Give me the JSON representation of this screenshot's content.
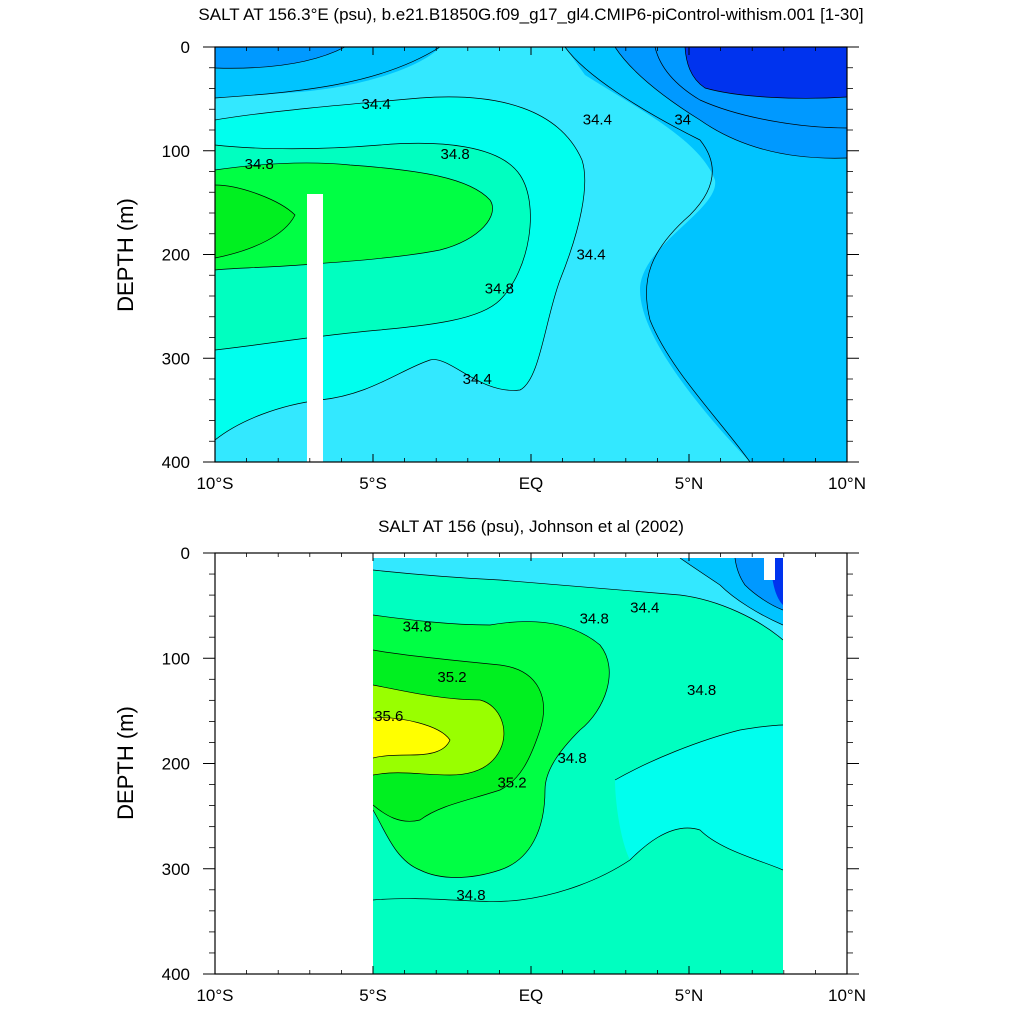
{
  "chart_data": [
    {
      "type": "heatmap",
      "subtype": "filled-contour",
      "title": "SALT AT 156.3°E (psu), b.e21.B1850G.f09_g17_gl4.CMIP6-piControl-withism.001 [1-30]",
      "ylabel": "DEPTH (m)",
      "xlim": [
        -10,
        10
      ],
      "ylim": [
        400,
        0
      ],
      "x_ticks": [
        -10,
        -5,
        0,
        5,
        10
      ],
      "x_tick_labels": [
        "10°S",
        "5°S",
        "EQ",
        "5°N",
        "10°N"
      ],
      "y_ticks": [
        0,
        100,
        200,
        300,
        400
      ],
      "y_tick_labels": [
        "0",
        "100",
        "200",
        "300",
        "400"
      ],
      "contour_levels": [
        33.8,
        34.0,
        34.2,
        34.4,
        34.6,
        34.8,
        35.0,
        35.2,
        35.4,
        35.6
      ],
      "contour_labels": [
        {
          "text": "34.4",
          "x": -4.9,
          "y": 55
        },
        {
          "text": "34.4",
          "x": 2.1,
          "y": 70
        },
        {
          "text": "34",
          "x": 4.8,
          "y": 70
        },
        {
          "text": "34.8",
          "x": -8.6,
          "y": 113
        },
        {
          "text": "34.8",
          "x": -2.4,
          "y": 103
        },
        {
          "text": "34.8",
          "x": -1.0,
          "y": 233
        },
        {
          "text": "34.4",
          "x": 1.9,
          "y": 200
        },
        {
          "text": "34.4",
          "x": -1.7,
          "y": 320
        }
      ],
      "missing_data_band": {
        "x": [
          -7.2,
          -6.7
        ],
        "y": [
          145,
          400
        ]
      }
    },
    {
      "type": "heatmap",
      "subtype": "filled-contour",
      "title": "SALT AT 156 (psu), Johnson et al (2002)",
      "ylabel": "DEPTH (m)",
      "xlim": [
        -10,
        10
      ],
      "ylim": [
        400,
        0
      ],
      "x_ticks": [
        -10,
        -5,
        0,
        5,
        10
      ],
      "x_tick_labels": [
        "10°S",
        "5°S",
        "EQ",
        "5°N",
        "10°N"
      ],
      "y_ticks": [
        0,
        100,
        200,
        300,
        400
      ],
      "y_tick_labels": [
        "0",
        "100",
        "200",
        "300",
        "400"
      ],
      "data_extent_x": [
        -5,
        8
      ],
      "contour_levels": [
        33.8,
        34.0,
        34.2,
        34.4,
        34.6,
        34.8,
        35.0,
        35.2,
        35.4,
        35.6
      ],
      "contour_labels": [
        {
          "text": "34.8",
          "x": -3.6,
          "y": 70
        },
        {
          "text": "34.8",
          "x": 2.0,
          "y": 62
        },
        {
          "text": "34.4",
          "x": 3.6,
          "y": 52
        },
        {
          "text": "35.2",
          "x": -2.5,
          "y": 118
        },
        {
          "text": "35.6",
          "x": -4.5,
          "y": 155
        },
        {
          "text": "35.2",
          "x": -0.6,
          "y": 218
        },
        {
          "text": "34.8",
          "x": 1.3,
          "y": 195
        },
        {
          "text": "34.8",
          "x": 5.4,
          "y": 130
        },
        {
          "text": "34.8",
          "x": -1.9,
          "y": 325
        }
      ]
    }
  ],
  "colors": {
    "s33_8": "#0033ee",
    "s34_0": "#0099ff",
    "s34_2": "#00c4ff",
    "s34_4": "#33e8ff",
    "s34_6": "#00ffee",
    "s34_8": "#00ffc0",
    "s35_0": "#00ff44",
    "s35_2": "#00f020",
    "s35_4": "#99ff00",
    "s35_6": "#ffff00"
  }
}
